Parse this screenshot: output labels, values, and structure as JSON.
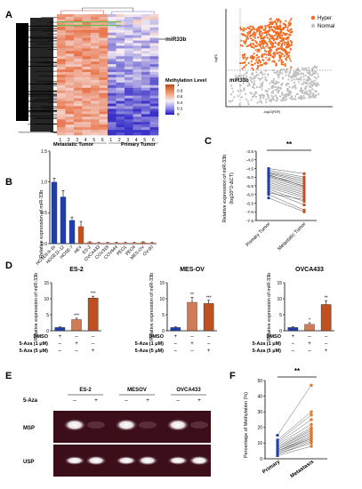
{
  "panels": {
    "A": "A",
    "B": "B",
    "C": "C",
    "D": "D",
    "E": "E",
    "F": "F"
  },
  "panelA": {
    "gene_label": "miR33b",
    "legend_title": "Methylation Level",
    "legend_ticks": [
      "1",
      "0.8",
      "0.6",
      "0.4",
      "0.2",
      "0"
    ],
    "col_numbers_meta": [
      "1",
      "2",
      "3",
      "4",
      "5",
      "6"
    ],
    "col_numbers_prim": [
      "1",
      "2",
      "3",
      "4",
      "5",
      "6"
    ],
    "group_meta": "Metastatic Tumor",
    "group_prim": "Primary Tumor",
    "colors": {
      "high": "#e8744a",
      "mid": "#f8f0f4",
      "low": "#3a32c8"
    }
  },
  "scatter": {
    "legend": [
      {
        "label": "Hyper",
        "color": "#f26b21"
      },
      {
        "label": "Normal",
        "color": "#bfbfbf"
      }
    ],
    "gene_label": "miR33b",
    "ylabel": "logFC",
    "xlabel": "-log10(FDR)"
  },
  "panelB": {
    "ylabel": "Relative expression of miR-33b",
    "chart_data": {
      "type": "bar",
      "categories": [
        "HOSE6-9-1b",
        "HOSE11-12",
        "HOSE-7",
        "HEY",
        "ES-2",
        "OVCA433",
        "COV318",
        "COV644",
        "PEO1",
        "PEO4",
        "MES-OV",
        "OV-90"
      ],
      "values": [
        1.0,
        0.76,
        0.38,
        0.28,
        0.02,
        0.01,
        0.01,
        0.01,
        0.01,
        0.01,
        0.02,
        0.01
      ],
      "errors": [
        0.06,
        0.1,
        0.05,
        0.08,
        0.01,
        0.01,
        0.01,
        0.01,
        0.01,
        0.01,
        0.01,
        0.01
      ],
      "ylim": [
        0,
        1.5
      ],
      "yticks": [
        "0.0",
        "0.5",
        "1.0",
        "1.5"
      ],
      "colors": [
        "#1f3fa6",
        "#1f3fa6",
        "#1f3fa6",
        "#c0501f",
        "#c0501f",
        "#c0501f",
        "#c0501f",
        "#c0501f",
        "#c0501f",
        "#c0501f",
        "#c0501f",
        "#c0501f"
      ]
    }
  },
  "panelC": {
    "ylabel": "Relative expression of miR-33b",
    "ylabel2": "(log10^2-ΔCT)",
    "sig": "**",
    "chart_data": {
      "type": "scatter",
      "categories": [
        "Primary Tumor",
        "Metastatic Tumor"
      ],
      "primary": [
        -4.5,
        -4.6,
        -4.7,
        -4.75,
        -4.8,
        -4.9,
        -4.95,
        -5.0,
        -5.1,
        -5.2,
        -5.3,
        -5.4,
        -5.5,
        -5.6,
        -5.7,
        -5.8,
        -6.0,
        -6.2,
        -5.9,
        -4.85
      ],
      "metastatic": [
        -4.8,
        -5.0,
        -5.1,
        -5.2,
        -5.3,
        -5.4,
        -5.5,
        -5.6,
        -5.7,
        -5.8,
        -5.9,
        -6.0,
        -6.1,
        -6.2,
        -6.4,
        -6.6,
        -6.9,
        -7.0,
        -6.3,
        -5.55
      ],
      "ylim": [
        -7.5,
        -3.5
      ],
      "yticks": [
        "-3.5",
        "-4.0",
        "-4.5",
        "-5.0",
        "-5.5",
        "-6.0",
        "-6.5",
        "-7.0",
        "-7.5"
      ]
    }
  },
  "panelD": {
    "ylabel": "Relative expression of miR-33b",
    "treat_labels": [
      "DMSO",
      "5-Aza (1 μM)",
      "5-Aza (5 μM)"
    ],
    "treat_marks": [
      [
        "+",
        "–",
        "–"
      ],
      [
        "–",
        "+",
        "–"
      ],
      [
        "–",
        "–",
        "+"
      ]
    ],
    "colors": [
      "#1f3fa6",
      "#c0501f",
      "#c0501f"
    ],
    "charts": [
      {
        "title": "ES-2",
        "type": "bar",
        "values": [
          1.0,
          3.5,
          10.2
        ],
        "errors": [
          0.2,
          0.4,
          0.6
        ],
        "ylim": [
          0,
          15
        ],
        "yticks": [
          "0",
          "5",
          "10",
          "15"
        ],
        "sig": [
          "",
          "***",
          "***"
        ]
      },
      {
        "title": "MES-OV",
        "type": "bar",
        "values": [
          1.0,
          8.9,
          8.5
        ],
        "errors": [
          0.2,
          1.5,
          1.0
        ],
        "ylim": [
          0,
          15
        ],
        "yticks": [
          "0",
          "5",
          "10",
          "15"
        ],
        "sig": [
          "",
          "**",
          "***"
        ]
      },
      {
        "title": "OVCA433",
        "type": "bar",
        "values": [
          1.0,
          2.0,
          8.2
        ],
        "errors": [
          0.2,
          0.5,
          1.2
        ],
        "ylim": [
          0,
          15
        ],
        "yticks": [
          "0",
          "5",
          "10",
          "15"
        ],
        "sig": [
          "",
          "*",
          "**"
        ]
      }
    ]
  },
  "panelE": {
    "row_label": "5-Aza",
    "cell_lines": [
      "ES-2",
      "MESOV",
      "OVCA433"
    ],
    "treat": [
      "–",
      "+"
    ],
    "gels": [
      "MSP",
      "USP"
    ]
  },
  "panelF": {
    "ylabel": "Percentage of Methylation (%)",
    "sig": "**",
    "chart_data": {
      "type": "scatter",
      "categories": [
        "Primary",
        "Metastasis"
      ],
      "primary": [
        2,
        3,
        3,
        4,
        4,
        5,
        5,
        5,
        6,
        6,
        7,
        7,
        8,
        9,
        10,
        11,
        12,
        15
      ],
      "metastasis": [
        8,
        10,
        11,
        12,
        13,
        13,
        14,
        15,
        16,
        17,
        18,
        19,
        20,
        22,
        25,
        28,
        30,
        47
      ],
      "ylim": [
        0,
        50
      ],
      "yticks": [
        "0",
        "10",
        "20",
        "30",
        "40",
        "50"
      ]
    }
  }
}
